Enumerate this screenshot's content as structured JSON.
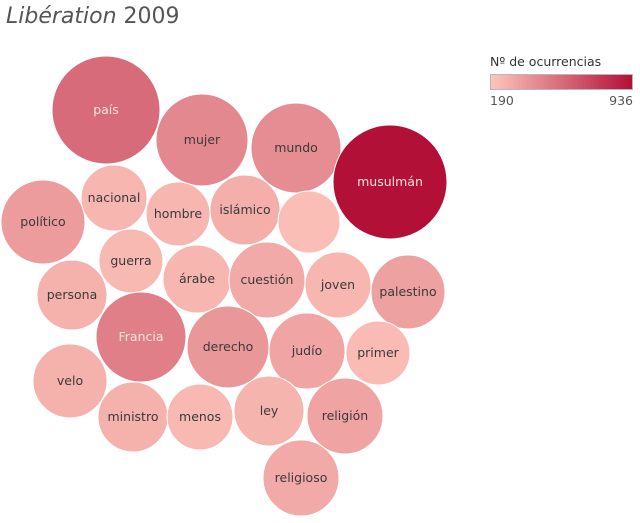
{
  "title": {
    "publication": "Libération",
    "year": "2009"
  },
  "legend": {
    "title": "Nº de ocurrencias",
    "min_label": "190",
    "max_label": "936",
    "color_low": "#fdc5bb",
    "color_high": "#b31038"
  },
  "chart_data": {
    "type": "bubble",
    "title": "Libération 2009",
    "color_metric": "Nº de ocurrencias",
    "color_range": [
      190,
      936
    ],
    "bubbles": [
      {
        "label": "país",
        "value": 560
      },
      {
        "label": "mujer",
        "value": 440
      },
      {
        "label": "mundo",
        "value": 420
      },
      {
        "label": "musulmán",
        "value": 936
      },
      {
        "label": "nacional",
        "value": 250
      },
      {
        "label": "hombre",
        "value": 250
      },
      {
        "label": "islámico",
        "value": 280
      },
      {
        "label": "",
        "value": 220
      },
      {
        "label": "político",
        "value": 360
      },
      {
        "label": "guerra",
        "value": 240
      },
      {
        "label": "árabe",
        "value": 250
      },
      {
        "label": "cuestión",
        "value": 300
      },
      {
        "label": "joven",
        "value": 250
      },
      {
        "label": "palestino",
        "value": 340
      },
      {
        "label": "persona",
        "value": 270
      },
      {
        "label": "Francia",
        "value": 480
      },
      {
        "label": "derecho",
        "value": 380
      },
      {
        "label": "judío",
        "value": 320
      },
      {
        "label": "primer",
        "value": 230
      },
      {
        "label": "velo",
        "value": 270
      },
      {
        "label": "ministro",
        "value": 270
      },
      {
        "label": "menos",
        "value": 240
      },
      {
        "label": "ley",
        "value": 260
      },
      {
        "label": "religión",
        "value": 330
      },
      {
        "label": "religioso",
        "value": 300
      }
    ]
  }
}
